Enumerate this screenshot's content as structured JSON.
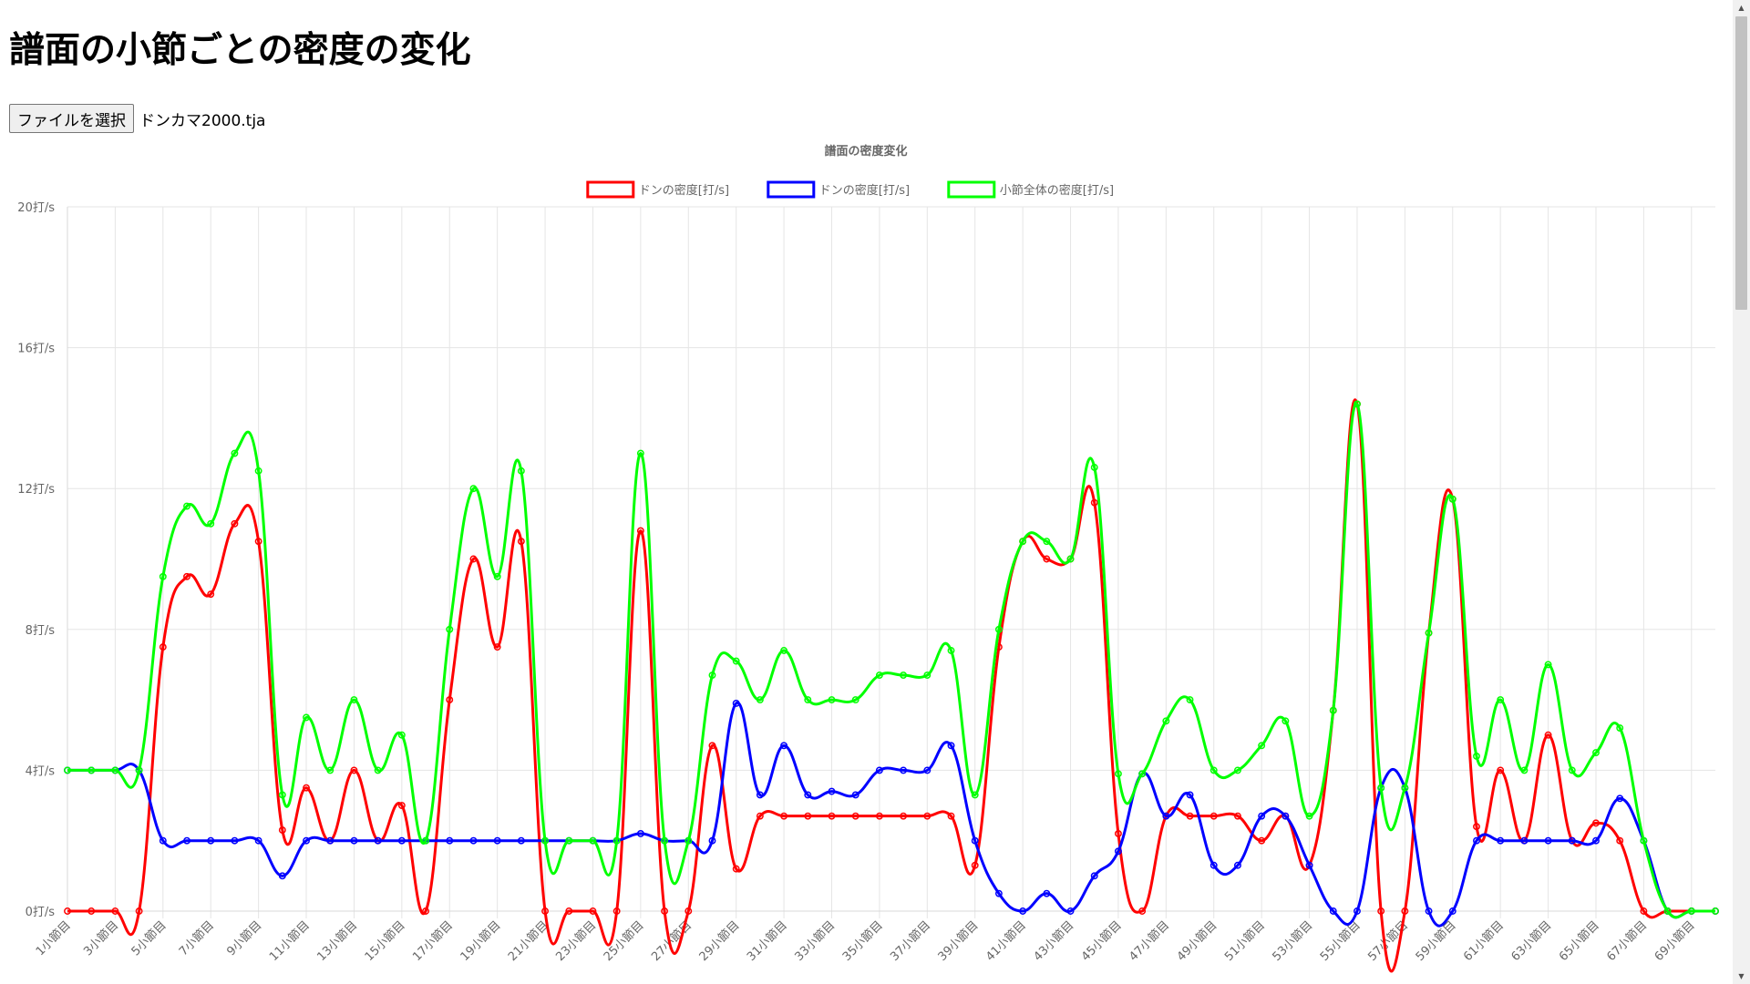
{
  "page": {
    "title": "譜面の小節ごとの密度の変化",
    "file_button_label": "ファイルを選択",
    "file_name": "ドンカマ2000.tja"
  },
  "colors": {
    "don": "#ff0000",
    "ka": "#0000ff",
    "total": "#00ff00",
    "grid": "#e5e5e5",
    "text": "#666666"
  },
  "chart_data": {
    "type": "line",
    "title": "譜面の密度変化",
    "legend_position": "top",
    "grid": true,
    "ylim": [
      0,
      20
    ],
    "ytick_step": 4,
    "ytick_suffix": "打/s",
    "x_label_suffix": "小節目",
    "x": [
      1,
      2,
      3,
      4,
      5,
      6,
      7,
      8,
      9,
      10,
      11,
      12,
      13,
      14,
      15,
      16,
      17,
      18,
      19,
      20,
      21,
      22,
      23,
      24,
      25,
      26,
      27,
      28,
      29,
      30,
      31,
      32,
      33,
      34,
      35,
      36,
      37,
      38,
      39,
      40,
      41,
      42,
      43,
      44,
      45,
      46,
      47,
      48,
      49,
      50,
      51,
      52,
      53,
      54,
      55,
      56,
      57,
      58,
      59,
      60,
      61,
      62,
      63,
      64,
      65,
      66,
      67,
      68,
      69,
      70
    ],
    "x_tick_labels_shown": [
      "1小節目",
      "3小節目",
      "5小節目",
      "7小節目",
      "9小節目",
      "11小節目",
      "13小節目",
      "15小節目",
      "17小節目",
      "19小節目",
      "21小節目",
      "23小節目",
      "25小節目",
      "27小節目",
      "29小節目",
      "31小節目",
      "33小節目",
      "35小節目",
      "37小節目",
      "39小節目",
      "41小節目",
      "43小節目",
      "45小節目",
      "47小節目",
      "49小節目",
      "51小節目",
      "53小節目",
      "55小節目",
      "57小節目",
      "59小節目",
      "61小節目",
      "63小節目",
      "65小節目",
      "67小節目",
      "69小節目"
    ],
    "series": [
      {
        "name": "ドンの密度[打/s]",
        "color": "#ff0000",
        "values": [
          0,
          0,
          0,
          0,
          7.5,
          9.5,
          9,
          11,
          10.5,
          2.3,
          3.5,
          2,
          4,
          2,
          3,
          0,
          6,
          10,
          7.5,
          10.5,
          0,
          0,
          0,
          0,
          10.8,
          0,
          0,
          4.7,
          1.2,
          2.7,
          2.7,
          2.7,
          2.7,
          2.7,
          2.7,
          2.7,
          2.7,
          2.7,
          1.3,
          7.5,
          10.5,
          10,
          10,
          11.6,
          2.2,
          0,
          2.7,
          2.7,
          2.7,
          2.7,
          2,
          2.7,
          1.3,
          5.7,
          14.4,
          0,
          0,
          7.9,
          11.7,
          2.4,
          4,
          2,
          5,
          2,
          2.5,
          2,
          0,
          0,
          0,
          0
        ]
      },
      {
        "name": "ドンの密度[打/s]",
        "color": "#0000ff",
        "values": [
          4,
          4,
          4,
          4,
          2,
          2,
          2,
          2,
          2,
          1,
          2,
          2,
          2,
          2,
          2,
          2,
          2,
          2,
          2,
          2,
          2,
          2,
          2,
          2,
          2.2,
          2,
          2,
          2,
          5.9,
          3.3,
          4.7,
          3.3,
          3.4,
          3.3,
          4,
          4,
          4,
          4.7,
          2,
          0.5,
          0,
          0.5,
          0,
          1,
          1.7,
          3.9,
          2.7,
          3.3,
          1.3,
          1.3,
          2.7,
          2.7,
          1.3,
          0,
          0,
          3.5,
          3.5,
          0,
          0,
          2,
          2,
          2,
          2,
          2,
          2,
          3.2,
          2,
          0,
          0,
          0
        ]
      },
      {
        "name": "小節全体の密度[打/s]",
        "color": "#00ff00",
        "values": [
          4,
          4,
          4,
          4,
          9.5,
          11.5,
          11,
          13,
          12.5,
          3.3,
          5.5,
          4,
          6,
          4,
          5,
          2,
          8,
          12,
          9.5,
          12.5,
          2,
          2,
          2,
          2,
          13,
          2,
          2,
          6.7,
          7.1,
          6,
          7.4,
          6,
          6,
          6,
          6.7,
          6.7,
          6.7,
          7.4,
          3.3,
          8,
          10.5,
          10.5,
          10,
          12.6,
          3.9,
          3.9,
          5.4,
          6,
          4,
          4,
          4.7,
          5.4,
          2.7,
          5.7,
          14.4,
          3.5,
          3.5,
          7.9,
          11.7,
          4.4,
          6,
          4,
          7,
          4,
          4.5,
          5.2,
          2,
          0,
          0,
          0
        ]
      }
    ]
  }
}
